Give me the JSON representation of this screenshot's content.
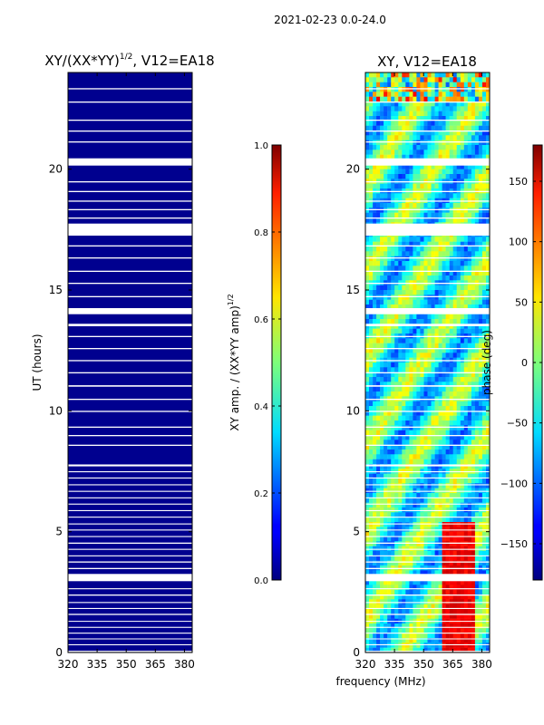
{
  "figure": {
    "suptitle": "2021-02-23 0.0-24.0",
    "xlabel": "frequency (MHz)"
  },
  "chart_data": [
    {
      "type": "heatmap",
      "title_main": "XY/(XX*YY)",
      "title_sup": "1/2",
      "title_rest": ", V12=EA18",
      "ylabel": "UT (hours)",
      "xlim": [
        320,
        384
      ],
      "ylim": [
        0,
        24
      ],
      "xticks": [
        320,
        335,
        350,
        365,
        380
      ],
      "yticks": [
        0,
        5,
        10,
        15,
        20
      ],
      "colorbar": {
        "label_main": "XY amp. / (XX*YY amp)",
        "label_sup": "1/2",
        "range": [
          0.0,
          1.0
        ],
        "ticks": [
          "0.0",
          "0.2",
          "0.4",
          "0.6",
          "0.8",
          "1.0"
        ],
        "colormap": "jet"
      }
    },
    {
      "type": "heatmap",
      "title": "XY, V12=EA18",
      "xlim": [
        320,
        384
      ],
      "ylim": [
        0,
        24
      ],
      "xticks": [
        320,
        335,
        350,
        365,
        380
      ],
      "yticks": [
        0,
        5,
        10,
        15,
        20
      ],
      "colorbar": {
        "label": "phase (deg)",
        "range": [
          -180,
          180
        ],
        "ticks": [
          "−150",
          "−100",
          "−50",
          "0",
          "50",
          "100",
          "150"
        ],
        "colormap": "jet"
      }
    }
  ],
  "flagged_bands_hours": [
    [
      0.02,
      0.07
    ],
    [
      0.3,
      0.34
    ],
    [
      0.55,
      0.58
    ],
    [
      0.78,
      0.82
    ],
    [
      1.02,
      1.06
    ],
    [
      1.28,
      1.31
    ],
    [
      1.55,
      1.6
    ],
    [
      1.8,
      1.84
    ],
    [
      2.05,
      2.09
    ],
    [
      2.35,
      2.4
    ],
    [
      2.62,
      2.66
    ],
    [
      2.95,
      3.25
    ],
    [
      3.45,
      3.5
    ],
    [
      3.72,
      3.77
    ],
    [
      3.98,
      4.02
    ],
    [
      4.25,
      4.29
    ],
    [
      4.5,
      4.55
    ],
    [
      4.78,
      4.82
    ],
    [
      5.05,
      5.09
    ],
    [
      5.3,
      5.34
    ],
    [
      5.58,
      5.62
    ],
    [
      5.85,
      5.89
    ],
    [
      6.12,
      6.16
    ],
    [
      6.38,
      6.42
    ],
    [
      6.65,
      6.69
    ],
    [
      6.92,
      6.96
    ],
    [
      7.2,
      7.24
    ],
    [
      7.46,
      7.5
    ],
    [
      7.7,
      7.78
    ],
    [
      8.55,
      8.6
    ],
    [
      8.95,
      9.0
    ],
    [
      9.3,
      9.35
    ],
    [
      9.95,
      10.0
    ],
    [
      10.45,
      10.5
    ],
    [
      11.0,
      11.06
    ],
    [
      11.55,
      11.6
    ],
    [
      12.05,
      12.1
    ],
    [
      12.55,
      12.6
    ],
    [
      13.05,
      13.1
    ],
    [
      13.5,
      13.6
    ],
    [
      14.0,
      14.25
    ],
    [
      14.7,
      14.75
    ],
    [
      15.25,
      15.3
    ],
    [
      15.75,
      15.8
    ],
    [
      16.3,
      16.35
    ],
    [
      16.8,
      16.85
    ],
    [
      17.25,
      17.75
    ],
    [
      17.95,
      18.0
    ],
    [
      18.3,
      18.35
    ],
    [
      18.65,
      18.7
    ],
    [
      19.05,
      19.1
    ],
    [
      19.45,
      19.5
    ],
    [
      20.15,
      20.45
    ],
    [
      21.1,
      21.15
    ],
    [
      21.55,
      21.6
    ],
    [
      22.0,
      22.05
    ],
    [
      22.75,
      22.8
    ],
    [
      23.3,
      23.35
    ]
  ]
}
